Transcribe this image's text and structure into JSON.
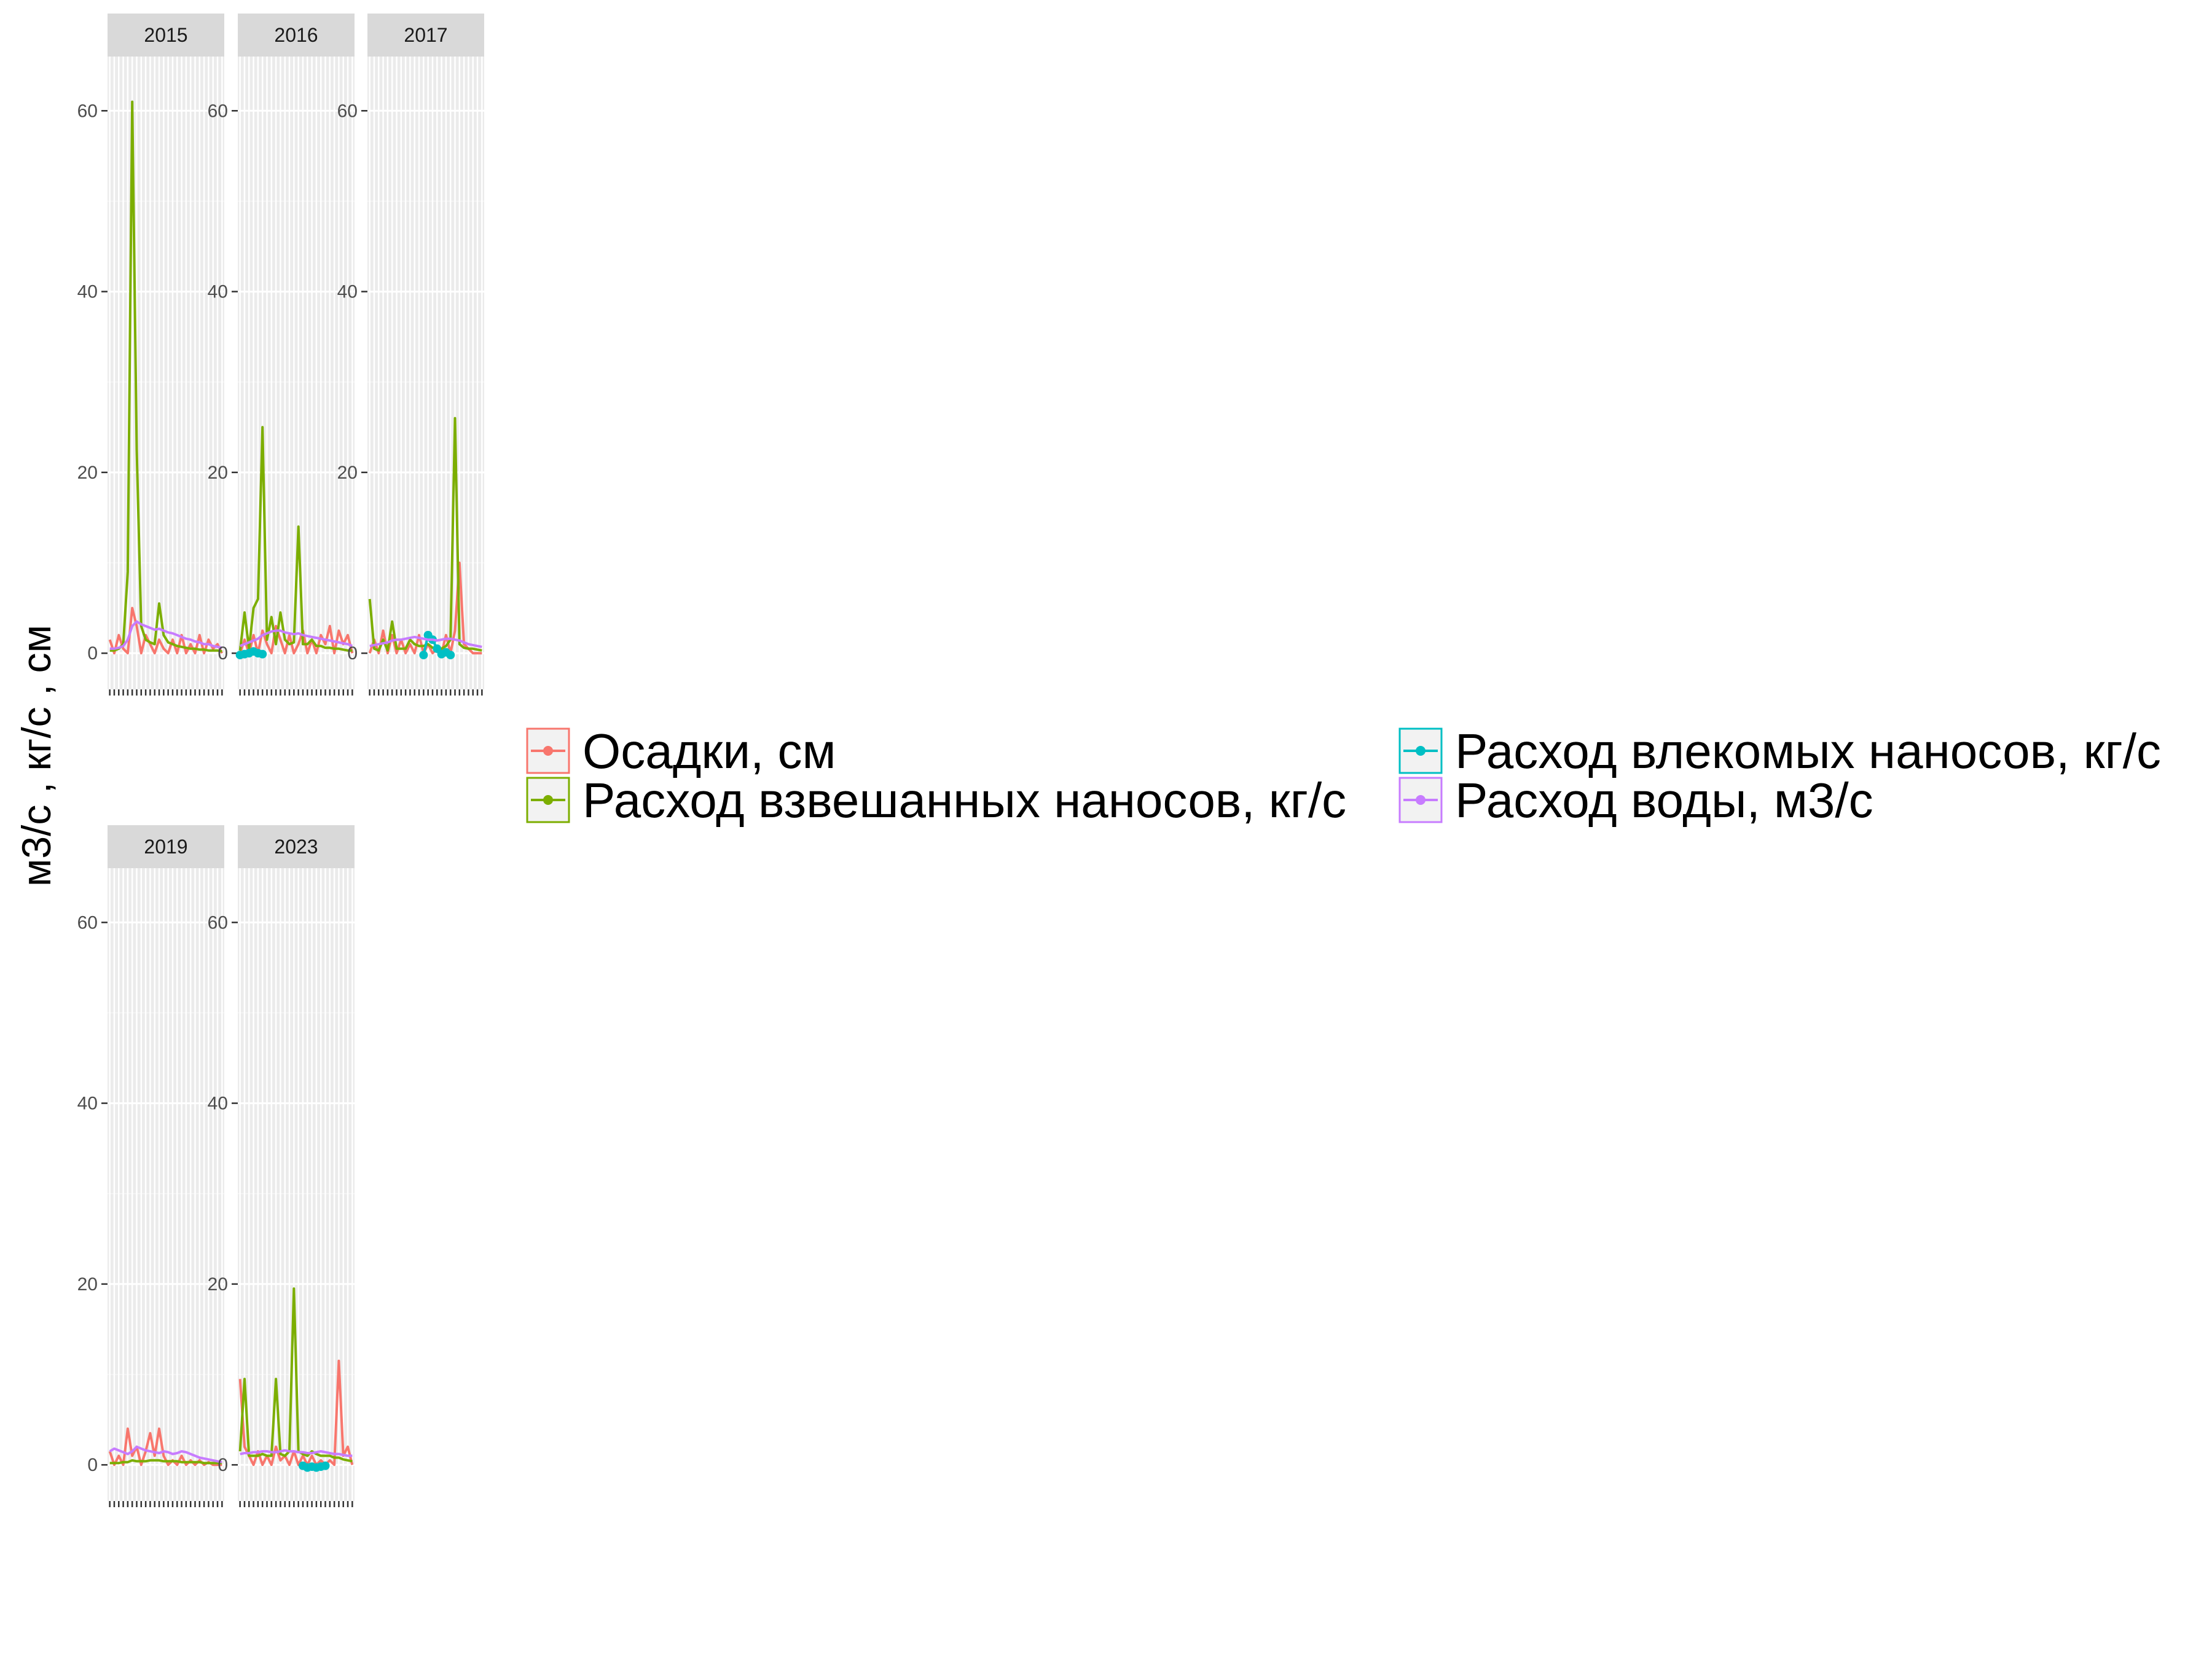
{
  "chart_data": {
    "type": "line",
    "ylabel": "м3/с ,  кг/с , см",
    "ylim": [
      -4,
      66
    ],
    "y_ticks": [
      0,
      20,
      40,
      60
    ],
    "grid": true,
    "facet_by": "year",
    "legend_placement": "right",
    "series_names": [
      "Осадки, см",
      "Расход взвешанных наносов, кг/с",
      "Расход влекомых наносов, кг/с",
      "Расход воды, м3/с"
    ],
    "series_colors": [
      "#F8766D",
      "#7CAE00",
      "#00BFC4",
      "#C77CFF"
    ],
    "panels": [
      {
        "strip": "2015",
        "n_x": 26,
        "series": [
          {
            "name": "Осадки, см",
            "values": [
              1.5,
              0,
              2,
              0.5,
              0,
              5,
              3,
              0,
              2,
              1,
              0,
              1.5,
              0.5,
              0,
              1.5,
              0,
              2,
              0,
              1,
              0,
              2,
              0,
              1.5,
              0.5,
              1,
              0
            ]
          },
          {
            "name": "Расход взвешанных наносов, кг/с",
            "values": [
              0.3,
              0.3,
              0.5,
              1,
              9,
              61,
              22.5,
              3,
              1.5,
              1.2,
              1,
              5.5,
              2,
              1.2,
              1,
              0.8,
              0.7,
              0.6,
              0.5,
              0.5,
              0.4,
              0.4,
              0.3,
              0.3,
              0.3,
              0.2
            ]
          },
          {
            "name": "Расход воды, м3/с",
            "values": [
              0.5,
              0.5,
              0.6,
              0.8,
              1.5,
              3,
              3.5,
              3.2,
              3,
              2.8,
              2.6,
              2.7,
              2.5,
              2.3,
              2.2,
              2,
              1.8,
              1.6,
              1.5,
              1.3,
              1.2,
              1,
              1,
              0.8,
              0.7,
              0.6
            ]
          }
        ]
      },
      {
        "strip": "2016",
        "n_x": 26,
        "series": [
          {
            "name": "Осадки, см",
            "values": [
              0,
              1.5,
              0,
              2,
              0,
              2.5,
              1,
              0,
              3,
              1.5,
              0,
              2,
              0,
              1,
              2.5,
              0,
              1.5,
              0,
              2,
              1,
              3,
              0,
              2.5,
              1,
              2,
              0
            ]
          },
          {
            "name": "Расход взвешанных наносов, кг/с",
            "values": [
              0.3,
              4.5,
              0.5,
              5,
              6,
              25,
              1.5,
              4,
              1,
              4.5,
              1.5,
              1,
              1.2,
              14,
              1,
              1,
              1.5,
              0.8,
              0.8,
              0.6,
              0.6,
              0.5,
              0.5,
              0.4,
              0.3,
              0.3
            ]
          },
          {
            "name": "Расход влекомых наносов, кг/с",
            "values": [
              -0.2,
              -0.1,
              0,
              0.2,
              0,
              -0.1,
              null,
              null,
              null,
              null,
              null,
              null,
              null,
              null,
              null,
              null,
              null,
              null,
              null,
              null,
              null,
              null,
              null,
              null,
              null,
              null
            ]
          },
          {
            "name": "Расход воды, м3/с",
            "values": [
              0.8,
              1,
              1.2,
              1.4,
              1.6,
              2,
              2.2,
              2.4,
              2.5,
              2.5,
              2.3,
              2.2,
              2.1,
              2.2,
              2,
              1.9,
              1.8,
              1.7,
              1.6,
              1.5,
              1.4,
              1.3,
              1.2,
              1.1,
              1,
              0.8
            ]
          }
        ]
      },
      {
        "strip": "2017",
        "n_x": 26,
        "series": [
          {
            "name": "Осадки, см",
            "values": [
              0,
              1.5,
              0,
              2.5,
              0,
              2,
              0,
              1.5,
              0,
              1,
              0,
              2,
              0,
              1,
              0,
              0.5,
              0,
              2,
              0,
              2.5,
              10,
              1,
              0.5,
              0,
              0,
              0
            ]
          },
          {
            "name": "Расход взвешанных наносов, кг/с",
            "values": [
              6,
              0.5,
              0.3,
              1.5,
              0.3,
              3.5,
              0.5,
              0.5,
              0.5,
              1.5,
              1,
              0.8,
              0.8,
              1,
              0.6,
              0.7,
              0.5,
              0.8,
              1.5,
              26,
              1,
              0.6,
              0.5,
              0.5,
              0.4,
              0.3
            ]
          },
          {
            "name": "Расход влекомых наносов, кг/с",
            "values": [
              null,
              null,
              null,
              null,
              null,
              null,
              null,
              null,
              null,
              null,
              null,
              null,
              -0.2,
              2,
              1.5,
              0.5,
              -0.1,
              0.1,
              -0.2,
              null,
              null,
              null,
              null,
              null,
              null,
              null
            ]
          },
          {
            "name": "Расход воды, м3/с",
            "values": [
              0.8,
              0.9,
              1,
              1.1,
              1.2,
              1.4,
              1.5,
              1.5,
              1.6,
              1.7,
              1.8,
              1.7,
              1.6,
              1.5,
              1.5,
              1.4,
              1.5,
              1.6,
              1.6,
              1.5,
              1.4,
              1.2,
              1,
              0.9,
              0.8,
              0.7
            ]
          }
        ]
      },
      {
        "strip": "2019",
        "n_x": 26,
        "series": [
          {
            "name": "Осадки, см",
            "values": [
              1.5,
              0,
              1,
              0,
              4,
              1,
              2,
              0,
              1.5,
              3.5,
              1,
              4,
              1,
              0,
              0.5,
              0,
              1,
              0,
              0.5,
              0,
              0.5,
              0,
              0.3,
              0,
              0,
              0
            ]
          },
          {
            "name": "Расход взвешанных наносов, кг/с",
            "values": [
              0.2,
              0.2,
              0.2,
              0.3,
              0.3,
              0.5,
              0.4,
              0.4,
              0.4,
              0.5,
              0.5,
              0.5,
              0.4,
              0.4,
              0.4,
              0.4,
              0.3,
              0.3,
              0.3,
              0.3,
              0.3,
              0.2,
              0.2,
              0.2,
              0.2,
              0.2
            ]
          },
          {
            "name": "Расход воды, м3/с",
            "values": [
              1.5,
              1.8,
              1.6,
              1.4,
              1.2,
              1.5,
              2,
              1.8,
              1.6,
              1.5,
              1.4,
              1.3,
              1.5,
              1.4,
              1.2,
              1.3,
              1.5,
              1.4,
              1.2,
              1,
              0.8,
              0.7,
              0.6,
              0.5,
              0.4,
              0.3
            ]
          }
        ]
      },
      {
        "strip": "2023",
        "n_x": 26,
        "series": [
          {
            "name": "Осадки, см",
            "values": [
              9.5,
              2,
              1,
              0,
              1.5,
              0,
              1,
              0,
              2,
              0.5,
              1,
              0,
              1.5,
              0,
              1,
              0,
              1,
              0,
              0.5,
              0,
              0.5,
              0,
              11.5,
              1,
              2,
              0
            ]
          },
          {
            "name": "Расход взвешанных наносов, кг/с",
            "values": [
              1.5,
              9.5,
              1,
              1,
              1,
              1.2,
              1,
              1,
              9.5,
              1.2,
              1,
              1.5,
              19.5,
              1.5,
              1.2,
              1,
              1.5,
              1.2,
              1,
              1,
              1,
              0.8,
              0.8,
              0.6,
              0.5,
              0.4
            ]
          },
          {
            "name": "Расход влекомых наносов, кг/с",
            "values": [
              null,
              null,
              null,
              null,
              null,
              null,
              null,
              null,
              null,
              null,
              null,
              null,
              null,
              null,
              -0.1,
              -0.3,
              -0.2,
              -0.3,
              -0.2,
              -0.1,
              null,
              null,
              null,
              null,
              null,
              null
            ]
          },
          {
            "name": "Расход воды, м3/с",
            "values": [
              1.2,
              1.3,
              1.3,
              1.4,
              1.4,
              1.5,
              1.5,
              1.4,
              1.4,
              1.5,
              1.6,
              1.5,
              1.5,
              1.4,
              1.4,
              1.3,
              1.3,
              1.4,
              1.5,
              1.4,
              1.3,
              1.2,
              1.2,
              1.1,
              1,
              1
            ]
          }
        ]
      }
    ]
  }
}
